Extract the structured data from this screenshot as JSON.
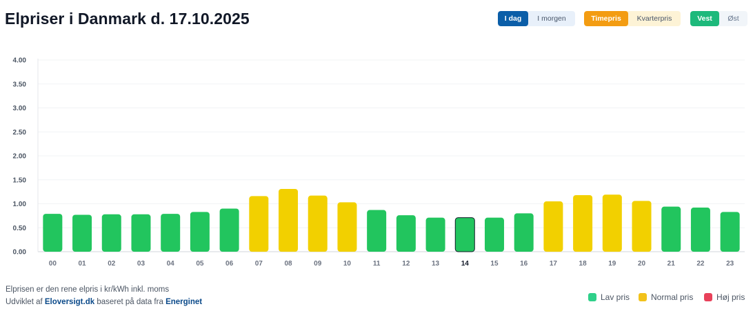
{
  "header": {
    "title": "Elpriser i Danmark d. 17.10.2025"
  },
  "toggles": {
    "day": {
      "active": "I dag",
      "other": "I morgen"
    },
    "interval": {
      "active": "Timepris",
      "other": "Kvarterpris"
    },
    "region": {
      "active": "Vest",
      "other": "Øst"
    }
  },
  "colors": {
    "low": "#22c55e",
    "normal": "#f2d000",
    "high": "#e8415a"
  },
  "chart_data": {
    "type": "bar",
    "categories": [
      "00",
      "01",
      "02",
      "03",
      "04",
      "05",
      "06",
      "07",
      "08",
      "09",
      "10",
      "11",
      "12",
      "13",
      "14",
      "15",
      "16",
      "17",
      "18",
      "19",
      "20",
      "21",
      "22",
      "23"
    ],
    "values": [
      0.79,
      0.77,
      0.78,
      0.78,
      0.79,
      0.83,
      0.9,
      1.16,
      1.31,
      1.17,
      1.03,
      0.87,
      0.76,
      0.71,
      0.71,
      0.71,
      0.8,
      1.05,
      1.18,
      1.19,
      1.06,
      0.94,
      0.92,
      0.83
    ],
    "levels": [
      "low",
      "low",
      "low",
      "low",
      "low",
      "low",
      "low",
      "normal",
      "normal",
      "normal",
      "normal",
      "low",
      "low",
      "low",
      "low",
      "low",
      "low",
      "normal",
      "normal",
      "normal",
      "normal",
      "low",
      "low",
      "low"
    ],
    "current_hour": "14",
    "yticks": [
      "0.00",
      "0.50",
      "1.00",
      "1.50",
      "2.00",
      "2.50",
      "3.00",
      "3.50",
      "4.00"
    ],
    "ylim": [
      0,
      4
    ],
    "grid": true
  },
  "footer": {
    "note": "Elprisen er den rene elpris i kr/kWh inkl. moms",
    "credit_prefix": "Udviklet af",
    "credit_link1": "Eloversigt.dk",
    "credit_middle": "baseret på data fra",
    "credit_link2": "Energinet"
  },
  "legend": [
    {
      "label": "Lav pris",
      "color": "#2fd08a"
    },
    {
      "label": "Normal pris",
      "color": "#f2c21b"
    },
    {
      "label": "Høj pris",
      "color": "#e8415a"
    }
  ]
}
